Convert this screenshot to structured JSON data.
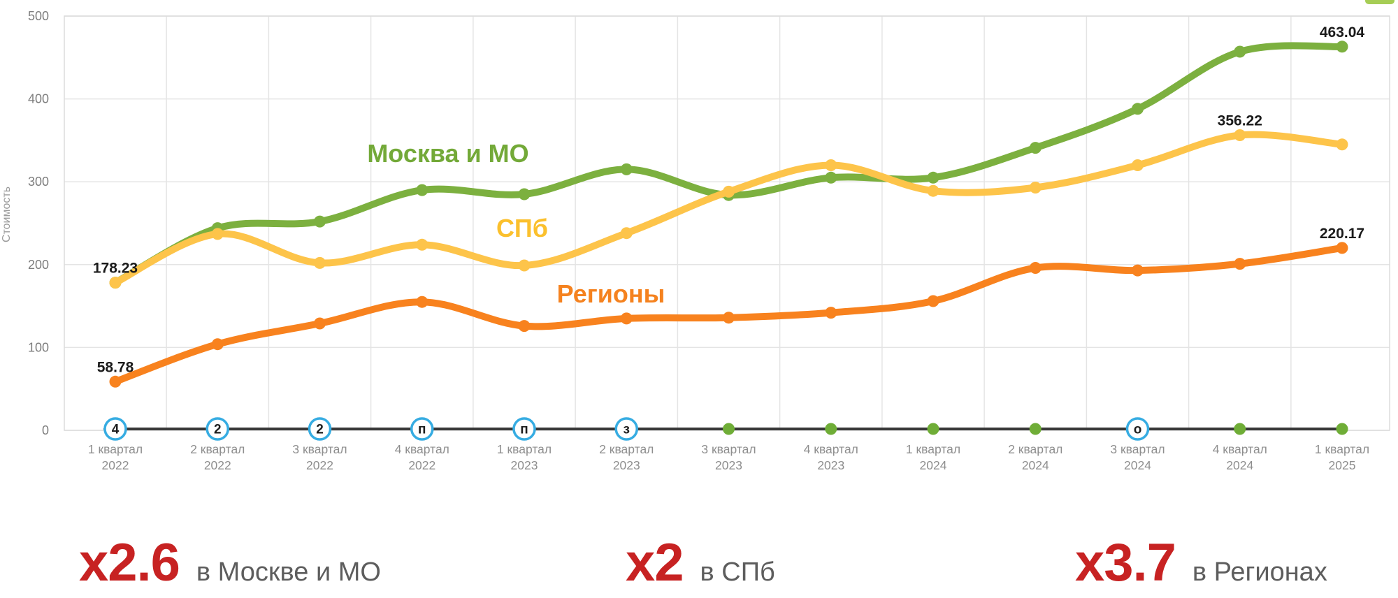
{
  "chart_data": {
    "type": "line",
    "title": "",
    "ylabel": "Стоимость",
    "ylim": [
      0,
      500
    ],
    "yticks": [
      0,
      100,
      200,
      300,
      400,
      500
    ],
    "grid": true,
    "legend": "inline-labels",
    "categories": [
      {
        "quarter": "1 квартал",
        "year": "2022"
      },
      {
        "quarter": "2 квартал",
        "year": "2022"
      },
      {
        "quarter": "3 квартал",
        "year": "2022"
      },
      {
        "quarter": "4 квартал",
        "year": "2022"
      },
      {
        "quarter": "1 квартал",
        "year": "2023"
      },
      {
        "quarter": "2 квартал",
        "year": "2023"
      },
      {
        "quarter": "3 квартал",
        "year": "2023"
      },
      {
        "quarter": "4 квартал",
        "year": "2023"
      },
      {
        "quarter": "1 квартал",
        "year": "2024"
      },
      {
        "quarter": "2 квартал",
        "year": "2024"
      },
      {
        "quarter": "3 квартал",
        "year": "2024"
      },
      {
        "quarter": "4 квартал",
        "year": "2024"
      },
      {
        "quarter": "1 квартал",
        "year": "2025"
      }
    ],
    "series": [
      {
        "name": "Москва и МО",
        "color": "#7cb03f",
        "values": [
          178.23,
          244,
          252,
          290,
          285,
          315,
          284,
          305,
          305,
          341,
          388,
          457,
          463.04
        ]
      },
      {
        "name": "СПб",
        "color": "#fdc44a",
        "values": [
          178.23,
          237,
          202,
          224,
          199,
          238,
          288,
          320,
          289,
          293,
          320,
          356.22,
          345
        ]
      },
      {
        "name": "Регионы",
        "color": "#f8821e",
        "values": [
          58.78,
          104,
          129,
          155,
          126,
          135,
          136,
          142,
          156,
          196,
          193,
          201,
          220.17
        ]
      }
    ],
    "point_labels": [
      {
        "text": "178.23",
        "series": 0,
        "point": 0
      },
      {
        "text": "58.78",
        "series": 2,
        "point": 0
      },
      {
        "text": "463.04",
        "series": 0,
        "point": 12
      },
      {
        "text": "356.22",
        "series": 1,
        "point": 11
      },
      {
        "text": "220.17",
        "series": 2,
        "point": 12
      }
    ],
    "series_annotations": [
      {
        "text": "Москва и МО",
        "x": 641,
        "y": 232,
        "color": "#73a938"
      },
      {
        "text": "СПб",
        "x": 747,
        "y": 339,
        "color": "#fbc02d"
      },
      {
        "text": "Регионы",
        "x": 874,
        "y": 433,
        "color": "#f5821f"
      }
    ],
    "axis_markers": [
      {
        "type": "circled",
        "label": "4"
      },
      {
        "type": "circled",
        "label": "2"
      },
      {
        "type": "circled",
        "label": "2"
      },
      {
        "type": "circled",
        "label": "п"
      },
      {
        "type": "circled",
        "label": "п"
      },
      {
        "type": "circled",
        "label": "з"
      },
      {
        "type": "dot",
        "label": ""
      },
      {
        "type": "dot",
        "label": ""
      },
      {
        "type": "dot",
        "label": ""
      },
      {
        "type": "dot",
        "label": ""
      },
      {
        "type": "circled",
        "label": "о"
      },
      {
        "type": "dot",
        "label": ""
      },
      {
        "type": "dot",
        "label": ""
      }
    ]
  },
  "stats": [
    {
      "value": "x2.6",
      "label": "в Москве и МО"
    },
    {
      "value": "x2",
      "label": "в СПб"
    },
    {
      "value": "x3.7",
      "label": "в Регионах"
    }
  ],
  "colors": {
    "stat_value": "#c72222",
    "stat_label": "#5d5d5d",
    "axis_line": "#383838",
    "grid_line": "#e4e4e4",
    "plot_border": "#dcdcdc",
    "tick_text": "#8e8e8e",
    "ytick_text": "#7d7d7d",
    "ylabel_text": "#9b9b9b",
    "point_label_text": "#1b1b1b",
    "marker_circle_border": "#36ace2",
    "marker_circle_fill": "#ffffff",
    "marker_letter": "#1e1e1e",
    "marker_dot": "#6fad37",
    "tab_fragment": "#a6cd55"
  }
}
